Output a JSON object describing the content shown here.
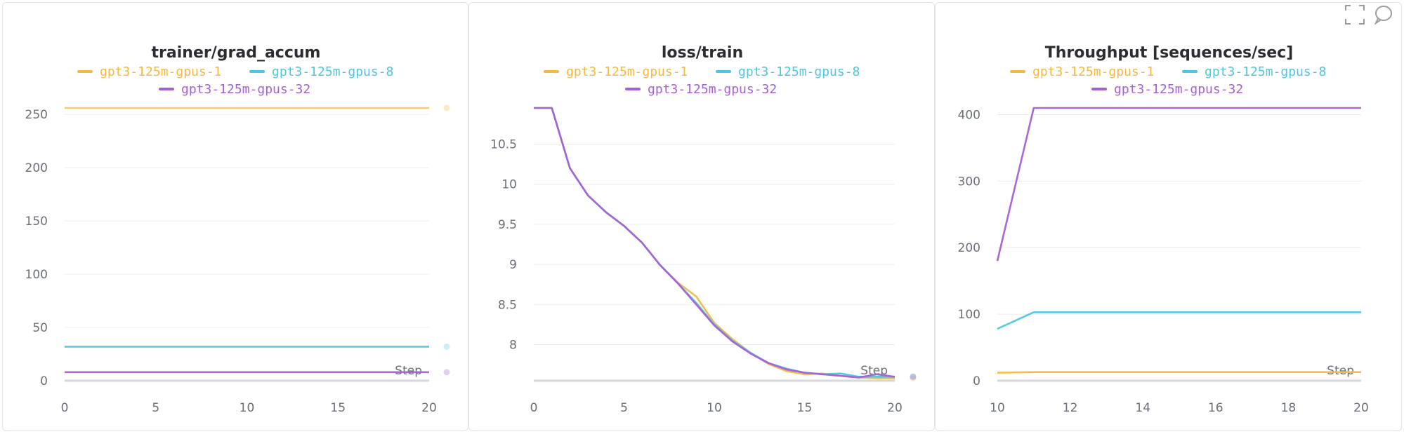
{
  "toolbar": {
    "fullscreen_icon": "fullscreen-icon",
    "comment_icon": "comment-icon"
  },
  "chart_data": [
    {
      "type": "line",
      "title": "trainer/grad_accum",
      "xlabel": "Step",
      "xlim": [
        0,
        20
      ],
      "ylim": [
        0,
        256
      ],
      "xticks": [
        0,
        5,
        10,
        15,
        20
      ],
      "yticks": [
        0,
        50,
        100,
        150,
        200,
        250
      ],
      "series": [
        {
          "name": "gpt3-125m-gpus-1",
          "color": "#f5b942",
          "x": [
            0,
            20
          ],
          "y": [
            256,
            256
          ]
        },
        {
          "name": "gpt3-125m-gpus-8",
          "color": "#4bc8e0",
          "x": [
            0,
            20
          ],
          "y": [
            32,
            32
          ]
        },
        {
          "name": "gpt3-125m-gpus-32",
          "color": "#a65fd6",
          "x": [
            0,
            20
          ],
          "y": [
            8,
            8
          ]
        }
      ]
    },
    {
      "type": "line",
      "title": "loss/train",
      "xlabel": "Step",
      "xlim": [
        0,
        20
      ],
      "ylim": [
        7.55,
        10.95
      ],
      "xticks": [
        0,
        5,
        10,
        15,
        20
      ],
      "yticks": [
        8,
        8.5,
        9,
        9.5,
        10,
        10.5
      ],
      "series": [
        {
          "name": "gpt3-125m-gpus-1",
          "color": "#f5b942",
          "x": [
            0,
            1,
            2,
            3,
            4,
            5,
            6,
            7,
            8,
            9,
            10,
            11,
            12,
            13,
            14,
            15,
            16,
            17,
            18,
            19,
            20
          ],
          "y": [
            10.95,
            10.95,
            10.2,
            9.86,
            9.65,
            9.48,
            9.27,
            8.99,
            8.77,
            8.6,
            8.27,
            8.07,
            7.9,
            7.76,
            7.67,
            7.63,
            7.64,
            7.61,
            7.59,
            7.58,
            7.58
          ]
        },
        {
          "name": "gpt3-125m-gpus-8",
          "color": "#4bc8e0",
          "x": [
            0,
            1,
            2,
            3,
            4,
            5,
            6,
            7,
            8,
            9,
            10,
            11,
            12,
            13,
            14,
            15,
            16,
            17,
            18,
            19,
            20
          ],
          "y": [
            10.95,
            10.95,
            10.2,
            9.86,
            9.65,
            9.48,
            9.27,
            8.99,
            8.76,
            8.52,
            8.25,
            8.05,
            7.9,
            7.77,
            7.7,
            7.65,
            7.63,
            7.64,
            7.6,
            7.6,
            7.6
          ]
        },
        {
          "name": "gpt3-125m-gpus-32",
          "color": "#a65fd6",
          "x": [
            0,
            1,
            2,
            3,
            4,
            5,
            6,
            7,
            8,
            9,
            10,
            11,
            12,
            13,
            14,
            15,
            16,
            17,
            18,
            19,
            20
          ],
          "y": [
            10.95,
            10.95,
            10.2,
            9.86,
            9.65,
            9.48,
            9.27,
            8.99,
            8.76,
            8.5,
            8.24,
            8.04,
            7.89,
            7.77,
            7.69,
            7.65,
            7.63,
            7.61,
            7.59,
            7.63,
            7.6
          ]
        }
      ]
    },
    {
      "type": "line",
      "title": "Throughput [sequences/sec]",
      "xlabel": "Step",
      "xlim": [
        10,
        20
      ],
      "ylim": [
        0,
        410
      ],
      "xticks": [
        10,
        12,
        14,
        16,
        18,
        20
      ],
      "yticks": [
        0,
        100,
        200,
        300,
        400
      ],
      "series": [
        {
          "name": "gpt3-125m-gpus-1",
          "color": "#f5b942",
          "x": [
            10,
            11,
            20
          ],
          "y": [
            12,
            13,
            13
          ]
        },
        {
          "name": "gpt3-125m-gpus-8",
          "color": "#4bc8e0",
          "x": [
            10,
            11,
            20
          ],
          "y": [
            78,
            103,
            103
          ]
        },
        {
          "name": "gpt3-125m-gpus-32",
          "color": "#a65fd6",
          "x": [
            10,
            11,
            20
          ],
          "y": [
            180,
            410,
            410
          ]
        }
      ]
    }
  ]
}
